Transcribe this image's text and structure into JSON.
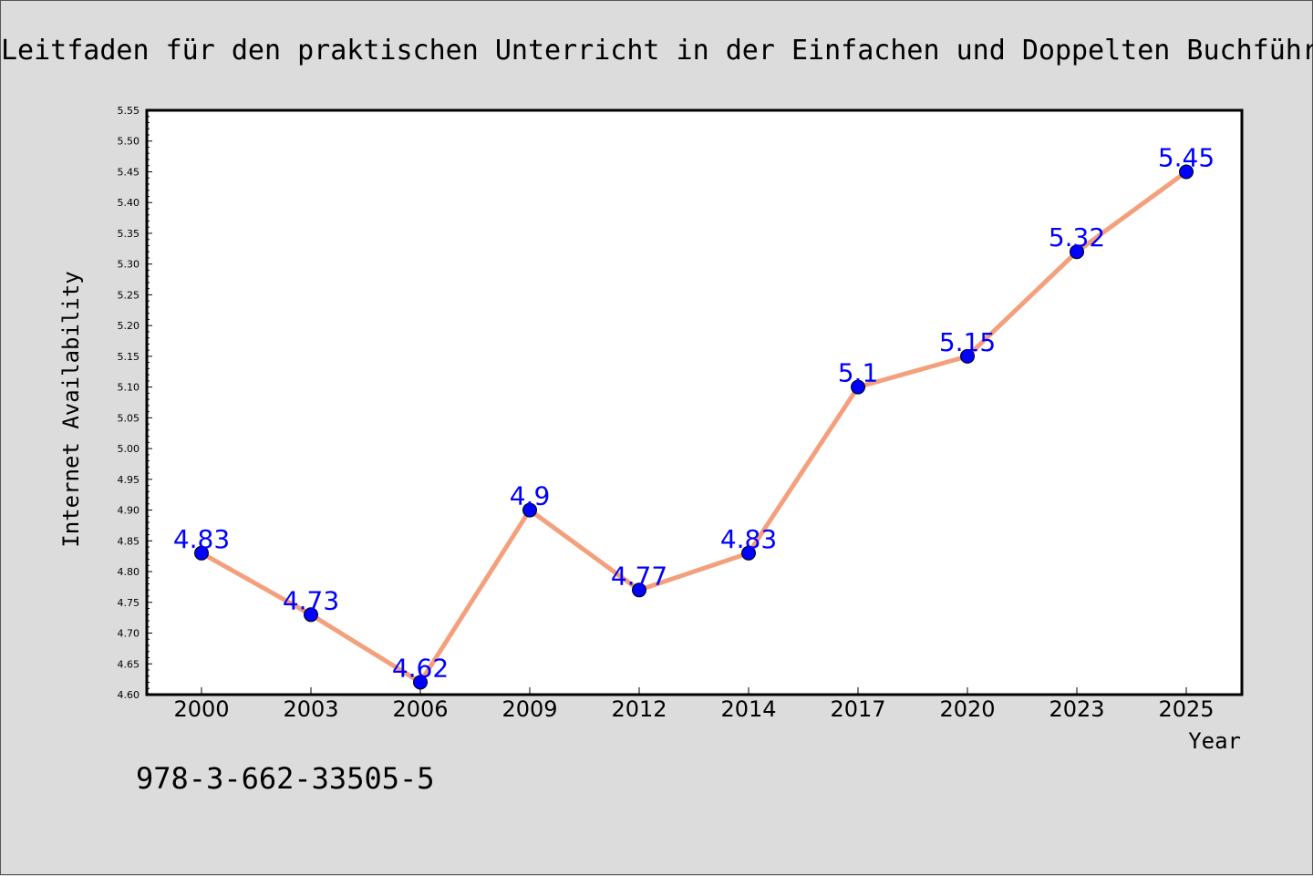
{
  "chart_data": {
    "type": "line",
    "title": "Leitfaden für den praktischen Unterricht in der Einfachen und Doppelten Buchführung",
    "xlabel": "Year",
    "ylabel": "Internet Availability",
    "categories": [
      "2000",
      "2003",
      "2006",
      "2009",
      "2012",
      "2014",
      "2017",
      "2020",
      "2023",
      "2025"
    ],
    "series": [
      {
        "values": [
          4.83,
          4.73,
          4.62,
          4.9,
          4.77,
          4.83,
          5.1,
          5.15,
          5.32,
          5.45
        ],
        "line_color": "#f4a07c",
        "marker_color": "#0000ff"
      }
    ],
    "ylim": [
      4.6,
      5.55
    ],
    "yticks": [
      "4.60",
      "4.65",
      "4.70",
      "4.75",
      "4.80",
      "4.85",
      "4.90",
      "4.95",
      "5.00",
      "5.05",
      "5.10",
      "5.15",
      "5.20",
      "5.25",
      "5.30",
      "5.35",
      "5.40",
      "5.45",
      "5.50",
      "5.55"
    ],
    "data_labels": [
      "4.83",
      "4.73",
      "4.62",
      "4.9",
      "4.77",
      "4.83",
      "5.1",
      "5.15",
      "5.32",
      "5.45"
    ],
    "data_label_color": "#0000ff",
    "grid": false,
    "legend": "none"
  },
  "footer": {
    "isbn": "978-3-662-33505-5"
  }
}
